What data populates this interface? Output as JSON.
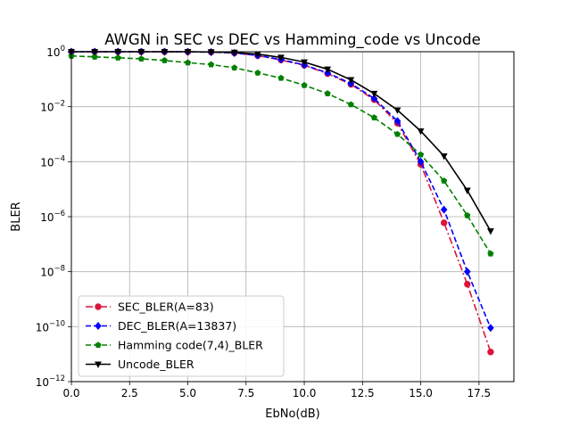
{
  "chart_data": {
    "type": "line",
    "title": "AWGN in SEC vs DEC vs Hamming_code vs Uncode",
    "xlabel": "EbNo(dB)",
    "ylabel": "BLER",
    "xlim": [
      0,
      19
    ],
    "ylim_exponent": [
      -12,
      0
    ],
    "yscale": "log",
    "grid": true,
    "legend_position": "lower-left",
    "x_ticks": [
      0,
      2.5,
      5,
      7.5,
      10,
      12.5,
      15,
      17.5
    ],
    "x_tick_labels": [
      "0.0",
      "2.5",
      "5.0",
      "7.5",
      "10.0",
      "12.5",
      "15.0",
      "17.5"
    ],
    "y_tick_exponents": [
      0,
      -2,
      -4,
      -6,
      -8,
      -10,
      -12
    ],
    "y_tick_base": "10",
    "y_tick_labels_exp": [
      "0",
      "−2",
      "−4",
      "−6",
      "−8",
      "−10",
      "−12"
    ],
    "series": [
      {
        "name": "SEC_BLER(A=83)",
        "color": "#dc143c",
        "dash": "dash-dot",
        "marker": "circle",
        "x": [
          0,
          1,
          2,
          3,
          4,
          5,
          6,
          7,
          8,
          9,
          10,
          11,
          12,
          13,
          14,
          15,
          16,
          17,
          18
        ],
        "y": [
          1.0,
          1.0,
          1.0,
          1.0,
          1.0,
          0.99,
          0.97,
          0.9,
          0.72,
          0.5,
          0.32,
          0.16,
          0.065,
          0.018,
          0.0025,
          8e-05,
          6e-07,
          3.5e-09,
          1.2e-11
        ]
      },
      {
        "name": "DEC_BLER(A=13837)",
        "color": "#0000ff",
        "dash": "dashed",
        "marker": "diamond",
        "x": [
          0,
          1,
          2,
          3,
          4,
          5,
          6,
          7,
          8,
          9,
          10,
          11,
          12,
          13,
          14,
          15,
          16,
          17,
          18
        ],
        "y": [
          1.0,
          1.0,
          1.0,
          1.0,
          1.0,
          0.99,
          0.97,
          0.9,
          0.73,
          0.52,
          0.33,
          0.17,
          0.07,
          0.02,
          0.003,
          0.0001,
          1.8e-06,
          1e-08,
          9e-11
        ]
      },
      {
        "name": "Hamming code(7,4)_BLER",
        "color": "#008000",
        "dash": "dashed",
        "marker": "pentagon",
        "x": [
          0,
          1,
          2,
          3,
          4,
          5,
          6,
          7,
          8,
          9,
          10,
          11,
          12,
          13,
          14,
          15,
          16,
          17,
          18
        ],
        "y": [
          0.7,
          0.65,
          0.6,
          0.55,
          0.48,
          0.4,
          0.34,
          0.26,
          0.17,
          0.11,
          0.06,
          0.03,
          0.012,
          0.004,
          0.001,
          0.00018,
          2e-05,
          1.1e-06,
          4.5e-08
        ]
      },
      {
        "name": "Uncode_BLER",
        "color": "#000000",
        "dash": "solid",
        "marker": "triangle-down",
        "x": [
          0,
          1,
          2,
          3,
          4,
          5,
          6,
          7,
          8,
          9,
          10,
          11,
          12,
          13,
          14,
          15,
          16,
          17,
          18
        ],
        "y": [
          1.0,
          1.0,
          1.0,
          1.0,
          1.0,
          1.0,
          0.98,
          0.94,
          0.82,
          0.62,
          0.42,
          0.23,
          0.095,
          0.03,
          0.0075,
          0.0013,
          0.00016,
          9e-06,
          3e-07
        ]
      }
    ]
  }
}
